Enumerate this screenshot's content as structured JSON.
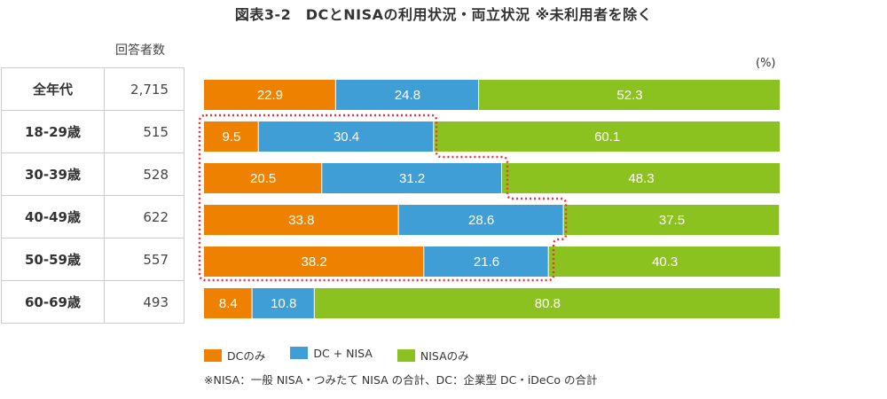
{
  "title": "図表3-2　DCとNISAの利用状況・両立状況 ※未利用者を除く",
  "chart_data": {
    "type": "bar",
    "orientation": "horizontal-stacked-100",
    "unit_label": "(%)",
    "count_header": "回答者数",
    "categories": [
      "全年代",
      "18-29歳",
      "30-39歳",
      "40-49歳",
      "50-59歳",
      "60-69歳"
    ],
    "counts": [
      "2,715",
      "515",
      "528",
      "622",
      "557",
      "493"
    ],
    "series": [
      {
        "name": "DCのみ",
        "color": "#EE8200",
        "values": [
          22.9,
          9.5,
          20.5,
          33.8,
          38.2,
          8.4
        ]
      },
      {
        "name": "DC + NISA",
        "color": "#409ED6",
        "values": [
          24.8,
          30.4,
          31.2,
          28.6,
          21.6,
          10.8
        ]
      },
      {
        "name": "NISAのみ",
        "color": "#8CC21F",
        "values": [
          52.3,
          60.1,
          48.3,
          37.5,
          40.3,
          80.8
        ]
      }
    ],
    "highlight": {
      "rows": [
        "18-29歳",
        "30-39歳",
        "40-49歳",
        "50-59歳"
      ],
      "color": "#E8343A",
      "style": "dotted"
    },
    "note": "※NISA：一般 NISA・つみたて NISA の合計、DC：企業型 DC・iDeCo の合計"
  }
}
